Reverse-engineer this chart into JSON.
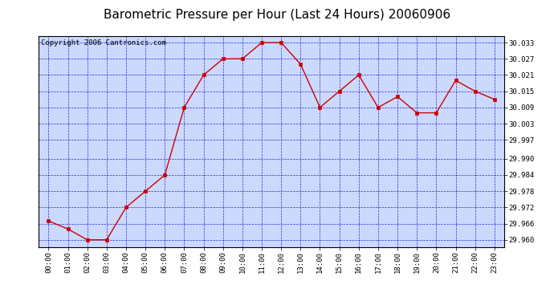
{
  "title": "Barometric Pressure per Hour (Last 24 Hours) 20060906",
  "copyright": "Copyright 2006 Cantronics.com",
  "hours": [
    "00:00",
    "01:00",
    "02:00",
    "03:00",
    "04:00",
    "05:00",
    "06:00",
    "07:00",
    "08:00",
    "09:00",
    "10:00",
    "11:00",
    "12:00",
    "13:00",
    "14:00",
    "15:00",
    "16:00",
    "17:00",
    "18:00",
    "19:00",
    "20:00",
    "21:00",
    "22:00",
    "23:00"
  ],
  "values": [
    29.967,
    29.964,
    29.96,
    29.96,
    29.972,
    29.978,
    29.984,
    30.009,
    30.021,
    30.027,
    30.027,
    30.033,
    30.033,
    30.025,
    30.009,
    30.015,
    30.021,
    30.009,
    30.013,
    30.007,
    30.007,
    30.019,
    30.015,
    30.012
  ],
  "line_color": "#cc0000",
  "marker_color": "#cc0000",
  "bg_color": "#ccd9ff",
  "outer_bg": "#ffffff",
  "grid_color": "#0000cc",
  "title_color": "#000000",
  "copyright_color": "#000000",
  "ylim_min": 29.9574,
  "ylim_max": 30.0354,
  "yticks": [
    29.96,
    29.966,
    29.972,
    29.978,
    29.984,
    29.99,
    29.997,
    30.003,
    30.009,
    30.015,
    30.021,
    30.027,
    30.033
  ],
  "ytick_labels": [
    "29.960",
    "29.966",
    "29.972",
    "29.978",
    "29.984",
    "29.990",
    "29.997",
    "30.003",
    "30.009",
    "30.015",
    "30.021",
    "30.027",
    "30.033"
  ],
  "title_fontsize": 11,
  "copyright_fontsize": 6.5,
  "tick_fontsize": 6.5
}
